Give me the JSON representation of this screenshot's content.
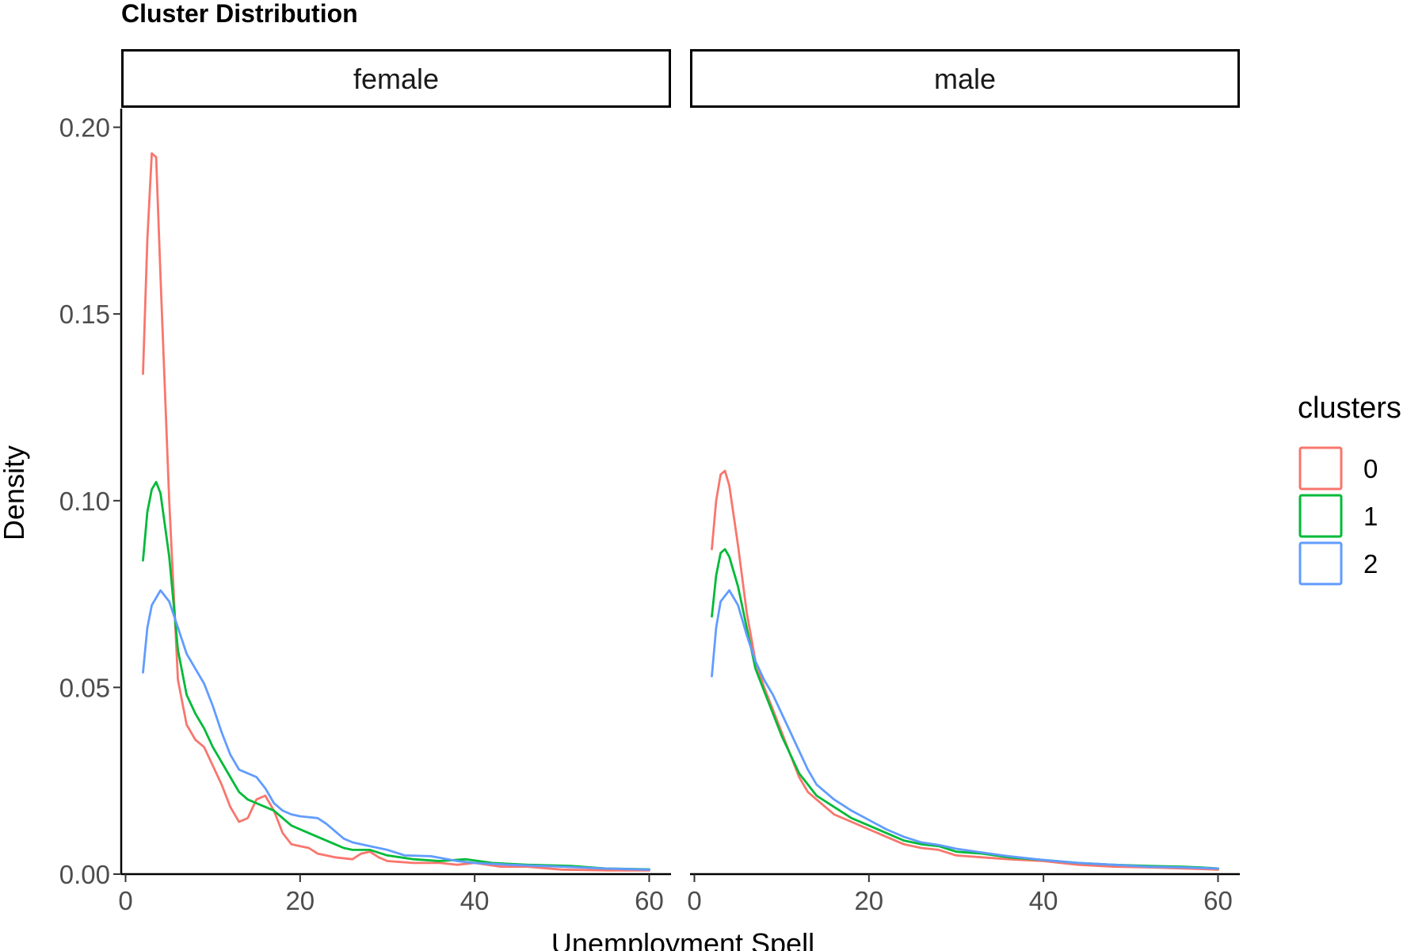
{
  "chart_data": {
    "type": "line",
    "title": "Cluster Distribution",
    "xlabel": "Unemployment Spell",
    "ylabel": "Density",
    "xlim": [
      -0.5,
      62.5
    ],
    "ylim": [
      0,
      0.205
    ],
    "x_ticks": [
      0,
      20,
      40,
      60
    ],
    "x_tick_labels": [
      "0",
      "20",
      "40",
      "60"
    ],
    "y_ticks": [
      0,
      0.05,
      0.1,
      0.15,
      0.2
    ],
    "y_tick_labels": [
      "0.00",
      "0.05",
      "0.10",
      "0.15",
      "0.20"
    ],
    "grid": false,
    "legend": {
      "title": "clusters",
      "placement": "right",
      "entries": [
        {
          "label": "0",
          "color": "#F8766D"
        },
        {
          "label": "1",
          "color": "#00BA38"
        },
        {
          "label": "2",
          "color": "#619CFF"
        }
      ]
    },
    "panels": [
      {
        "label": "female",
        "series": [
          {
            "cluster": "0",
            "color": "#F8766D",
            "points": [
              [
                2,
                0.134
              ],
              [
                2.5,
                0.17
              ],
              [
                3,
                0.193
              ],
              [
                3.5,
                0.192
              ],
              [
                4,
                0.16
              ],
              [
                5,
                0.1
              ],
              [
                6,
                0.052
              ],
              [
                7,
                0.04
              ],
              [
                8,
                0.036
              ],
              [
                9,
                0.034
              ],
              [
                10,
                0.029
              ],
              [
                11,
                0.024
              ],
              [
                12,
                0.018
              ],
              [
                13,
                0.014
              ],
              [
                14,
                0.015
              ],
              [
                15,
                0.02
              ],
              [
                16,
                0.021
              ],
              [
                17,
                0.017
              ],
              [
                18,
                0.011
              ],
              [
                19,
                0.008
              ],
              [
                20,
                0.0075
              ],
              [
                21,
                0.007
              ],
              [
                22,
                0.0055
              ],
              [
                24,
                0.0045
              ],
              [
                26,
                0.004
              ],
              [
                27,
                0.0055
              ],
              [
                28,
                0.006
              ],
              [
                29,
                0.0045
              ],
              [
                30,
                0.0035
              ],
              [
                33,
                0.003
              ],
              [
                36,
                0.003
              ],
              [
                38,
                0.0025
              ],
              [
                40,
                0.003
              ],
              [
                43,
                0.002
              ],
              [
                46,
                0.002
              ],
              [
                50,
                0.0012
              ],
              [
                55,
                0.001
              ],
              [
                60,
                0.001
              ]
            ]
          },
          {
            "cluster": "1",
            "color": "#00BA38",
            "points": [
              [
                2,
                0.084
              ],
              [
                2.5,
                0.097
              ],
              [
                3,
                0.103
              ],
              [
                3.5,
                0.105
              ],
              [
                4,
                0.102
              ],
              [
                5,
                0.085
              ],
              [
                6,
                0.06
              ],
              [
                7,
                0.048
              ],
              [
                8,
                0.043
              ],
              [
                9,
                0.039
              ],
              [
                10,
                0.034
              ],
              [
                11,
                0.03
              ],
              [
                12,
                0.026
              ],
              [
                13,
                0.022
              ],
              [
                14,
                0.02
              ],
              [
                15,
                0.019
              ],
              [
                16,
                0.018
              ],
              [
                17,
                0.017
              ],
              [
                18,
                0.015
              ],
              [
                19,
                0.013
              ],
              [
                20,
                0.012
              ],
              [
                22,
                0.01
              ],
              [
                24,
                0.008
              ],
              [
                25,
                0.007
              ],
              [
                26,
                0.0065
              ],
              [
                28,
                0.0065
              ],
              [
                30,
                0.005
              ],
              [
                33,
                0.004
              ],
              [
                36,
                0.0035
              ],
              [
                39,
                0.004
              ],
              [
                42,
                0.003
              ],
              [
                46,
                0.0025
              ],
              [
                51,
                0.0022
              ],
              [
                55,
                0.0015
              ],
              [
                60,
                0.0013
              ]
            ]
          },
          {
            "cluster": "2",
            "color": "#619CFF",
            "points": [
              [
                2,
                0.054
              ],
              [
                2.5,
                0.066
              ],
              [
                3,
                0.072
              ],
              [
                4,
                0.076
              ],
              [
                5,
                0.073
              ],
              [
                6,
                0.066
              ],
              [
                7,
                0.059
              ],
              [
                8,
                0.055
              ],
              [
                9,
                0.051
              ],
              [
                10,
                0.045
              ],
              [
                11,
                0.038
              ],
              [
                12,
                0.032
              ],
              [
                13,
                0.028
              ],
              [
                14,
                0.027
              ],
              [
                15,
                0.026
              ],
              [
                16,
                0.023
              ],
              [
                17,
                0.019
              ],
              [
                18,
                0.017
              ],
              [
                19,
                0.016
              ],
              [
                20,
                0.0155
              ],
              [
                22,
                0.015
              ],
              [
                23,
                0.0135
              ],
              [
                24,
                0.0115
              ],
              [
                25,
                0.0095
              ],
              [
                26,
                0.0085
              ],
              [
                28,
                0.0075
              ],
              [
                30,
                0.0065
              ],
              [
                32,
                0.005
              ],
              [
                35,
                0.0048
              ],
              [
                38,
                0.0035
              ],
              [
                40,
                0.003
              ],
              [
                44,
                0.0025
              ],
              [
                50,
                0.002
              ],
              [
                55,
                0.0015
              ],
              [
                60,
                0.0012
              ]
            ]
          }
        ]
      },
      {
        "label": "male",
        "series": [
          {
            "cluster": "0",
            "color": "#F8766D",
            "points": [
              [
                2,
                0.087
              ],
              [
                2.5,
                0.1
              ],
              [
                3,
                0.107
              ],
              [
                3.5,
                0.108
              ],
              [
                4,
                0.104
              ],
              [
                5,
                0.088
              ],
              [
                6,
                0.07
              ],
              [
                7,
                0.057
              ],
              [
                8,
                0.05
              ],
              [
                9,
                0.044
              ],
              [
                10,
                0.038
              ],
              [
                11,
                0.032
              ],
              [
                12,
                0.026
              ],
              [
                13,
                0.022
              ],
              [
                14,
                0.02
              ],
              [
                16,
                0.016
              ],
              [
                18,
                0.014
              ],
              [
                20,
                0.012
              ],
              [
                22,
                0.01
              ],
              [
                24,
                0.008
              ],
              [
                26,
                0.007
              ],
              [
                28,
                0.0065
              ],
              [
                30,
                0.005
              ],
              [
                33,
                0.0045
              ],
              [
                36,
                0.004
              ],
              [
                40,
                0.0035
              ],
              [
                44,
                0.0025
              ],
              [
                48,
                0.002
              ],
              [
                52,
                0.0018
              ],
              [
                56,
                0.0015
              ],
              [
                60,
                0.0012
              ]
            ]
          },
          {
            "cluster": "1",
            "color": "#00BA38",
            "points": [
              [
                2,
                0.069
              ],
              [
                2.5,
                0.08
              ],
              [
                3,
                0.086
              ],
              [
                3.5,
                0.087
              ],
              [
                4,
                0.085
              ],
              [
                5,
                0.077
              ],
              [
                6,
                0.066
              ],
              [
                7,
                0.055
              ],
              [
                8,
                0.049
              ],
              [
                9,
                0.043
              ],
              [
                10,
                0.037
              ],
              [
                11,
                0.032
              ],
              [
                12,
                0.027
              ],
              [
                13,
                0.024
              ],
              [
                14,
                0.021
              ],
              [
                16,
                0.018
              ],
              [
                18,
                0.015
              ],
              [
                20,
                0.013
              ],
              [
                22,
                0.011
              ],
              [
                24,
                0.009
              ],
              [
                26,
                0.008
              ],
              [
                28,
                0.0075
              ],
              [
                30,
                0.006
              ],
              [
                33,
                0.0055
              ],
              [
                36,
                0.0045
              ],
              [
                40,
                0.0038
              ],
              [
                44,
                0.003
              ],
              [
                48,
                0.0025
              ],
              [
                52,
                0.0022
              ],
              [
                56,
                0.002
              ],
              [
                58,
                0.0018
              ],
              [
                60,
                0.0015
              ]
            ]
          },
          {
            "cluster": "2",
            "color": "#619CFF",
            "points": [
              [
                2,
                0.053
              ],
              [
                2.5,
                0.066
              ],
              [
                3,
                0.073
              ],
              [
                4,
                0.076
              ],
              [
                5,
                0.072
              ],
              [
                6,
                0.064
              ],
              [
                7,
                0.057
              ],
              [
                8,
                0.052
              ],
              [
                9,
                0.048
              ],
              [
                10,
                0.043
              ],
              [
                11,
                0.038
              ],
              [
                12,
                0.033
              ],
              [
                13,
                0.028
              ],
              [
                14,
                0.024
              ],
              [
                16,
                0.02
              ],
              [
                18,
                0.017
              ],
              [
                20,
                0.0145
              ],
              [
                22,
                0.012
              ],
              [
                24,
                0.01
              ],
              [
                26,
                0.0085
              ],
              [
                28,
                0.0078
              ],
              [
                30,
                0.0068
              ],
              [
                33,
                0.0058
              ],
              [
                36,
                0.0048
              ],
              [
                40,
                0.0038
              ],
              [
                44,
                0.003
              ],
              [
                48,
                0.0025
              ],
              [
                52,
                0.002
              ],
              [
                56,
                0.0018
              ],
              [
                60,
                0.0015
              ]
            ]
          }
        ]
      }
    ]
  }
}
